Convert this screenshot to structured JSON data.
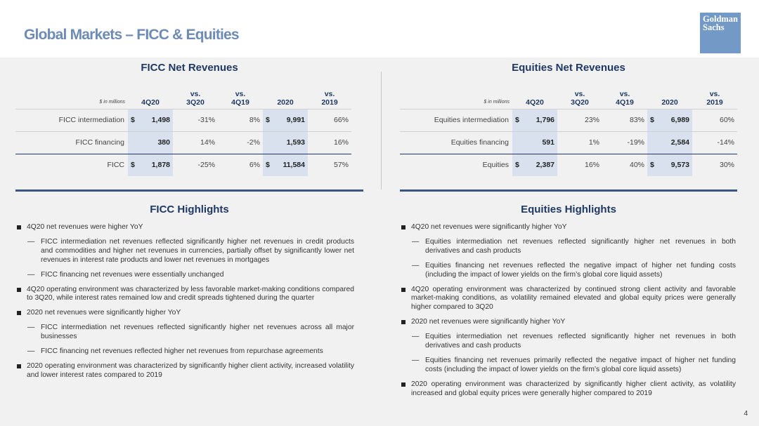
{
  "page": {
    "title": "Global Markets – FICC & Equities",
    "page_number": "4",
    "logo_line1": "Goldman",
    "logo_line2": "Sachs"
  },
  "ficc_table": {
    "title": "FICC Net Revenues",
    "unit": "$ in millions",
    "headers": [
      [
        "4Q20"
      ],
      [
        "vs.",
        "3Q20"
      ],
      [
        "vs.",
        "4Q19"
      ],
      [
        "2020"
      ],
      [
        "vs.",
        "2019"
      ]
    ],
    "rows": [
      {
        "label": "FICC intermediation",
        "q": "1,498",
        "q_cur": "$",
        "vs3q": "-31%",
        "vs4q": "8%",
        "y": "9,991",
        "y_cur": "$",
        "vsy": "66%"
      },
      {
        "label": "FICC financing",
        "q": "380",
        "q_cur": "",
        "vs3q": "14%",
        "vs4q": "-2%",
        "y": "1,593",
        "y_cur": "",
        "vsy": "16%"
      },
      {
        "label": "FICC",
        "q": "1,878",
        "q_cur": "$",
        "vs3q": "-25%",
        "vs4q": "6%",
        "y": "11,584",
        "y_cur": "$",
        "vsy": "57%"
      }
    ]
  },
  "eq_table": {
    "title": "Equities Net Revenues",
    "unit": "$ in millions",
    "headers": [
      [
        "4Q20"
      ],
      [
        "vs.",
        "3Q20"
      ],
      [
        "vs.",
        "4Q19"
      ],
      [
        "2020"
      ],
      [
        "vs.",
        "2019"
      ]
    ],
    "rows": [
      {
        "label": "Equities intermediation",
        "q": "1,796",
        "q_cur": "$",
        "vs3q": "23%",
        "vs4q": "83%",
        "y": "6,989",
        "y_cur": "$",
        "vsy": "60%"
      },
      {
        "label": "Equities financing",
        "q": "591",
        "q_cur": "",
        "vs3q": "1%",
        "vs4q": "-19%",
        "y": "2,584",
        "y_cur": "",
        "vsy": "-14%"
      },
      {
        "label": "Equities",
        "q": "2,387",
        "q_cur": "$",
        "vs3q": "16%",
        "vs4q": "40%",
        "y": "9,573",
        "y_cur": "$",
        "vsy": "30%"
      }
    ]
  },
  "ficc_highlights": {
    "title": "FICC Highlights",
    "items": [
      {
        "level": 1,
        "text": "4Q20 net revenues were higher YoY"
      },
      {
        "level": 2,
        "text": "FICC intermediation net revenues reflected significantly higher net revenues in credit products and commodities and higher net revenues in currencies, partially offset by significantly lower net revenues in interest rate products and lower net revenues in mortgages"
      },
      {
        "level": 2,
        "text": "FICC financing net revenues were essentially unchanged"
      },
      {
        "level": 1,
        "text": "4Q20 operating environment was characterized by less favorable market-making conditions compared to 3Q20, while interest rates remained low and credit spreads tightened during the quarter"
      },
      {
        "level": 1,
        "text": "2020 net revenues were significantly higher YoY"
      },
      {
        "level": 2,
        "text": "FICC intermediation net revenues reflected significantly higher net revenues across all major businesses"
      },
      {
        "level": 2,
        "text": "FICC financing net revenues reflected higher net revenues from repurchase agreements"
      },
      {
        "level": 1,
        "text": "2020 operating environment was characterized by significantly higher client activity, increased volatility and lower interest rates compared to 2019"
      }
    ]
  },
  "eq_highlights": {
    "title": "Equities Highlights",
    "items": [
      {
        "level": 1,
        "text": "4Q20 net revenues were significantly higher YoY"
      },
      {
        "level": 2,
        "text": "Equities intermediation net revenues reflected significantly higher net revenues in both derivatives and cash products"
      },
      {
        "level": 2,
        "text": "Equities financing net revenues reflected the negative impact of higher net funding costs (including the impact of lower yields on the firm’s global core liquid assets)"
      },
      {
        "level": 1,
        "text": "4Q20 operating environment was characterized by continued strong client activity and favorable market-making conditions, as volatility remained elevated and global equity prices were generally higher compared to 3Q20"
      },
      {
        "level": 1,
        "text": "2020 net revenues were significantly higher YoY"
      },
      {
        "level": 2,
        "text": "Equities intermediation net revenues reflected significantly higher net revenues in both derivatives and cash products"
      },
      {
        "level": 2,
        "text": "Equities financing net revenues primarily reflected the negative impact of higher net funding costs (including the impact of lower yields on the firm’s global core liquid assets)"
      },
      {
        "level": 1,
        "text": "2020 operating environment was characterized by significantly higher client activity, as volatility increased and global equity prices were generally higher compared to 2019"
      }
    ]
  }
}
